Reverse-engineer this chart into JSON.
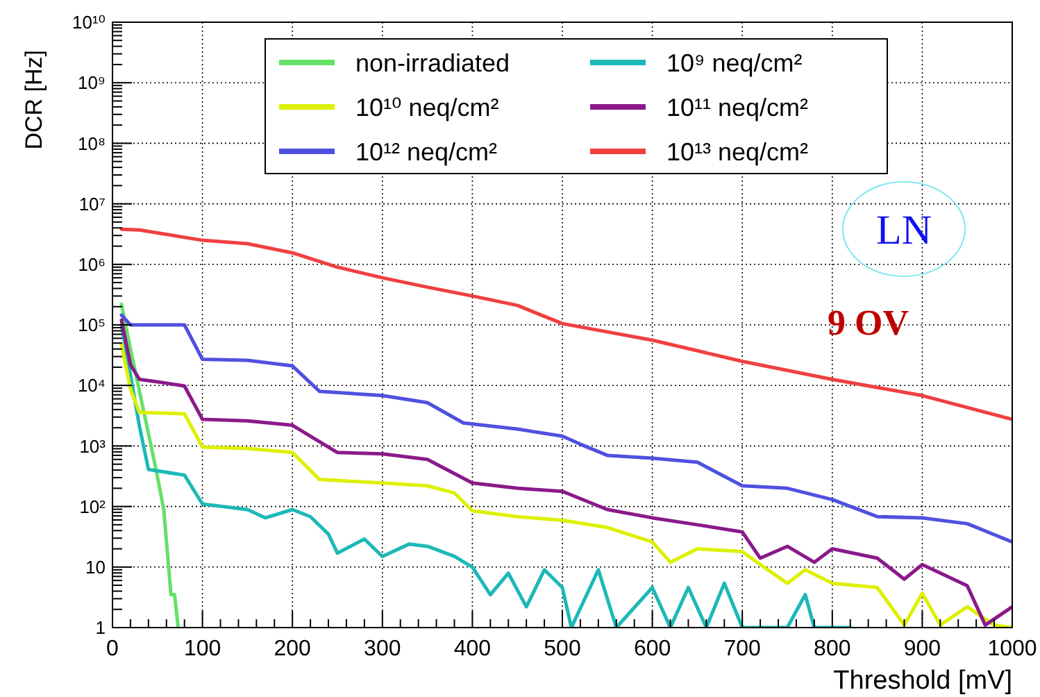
{
  "chart_data": {
    "type": "line",
    "xlabel": "Threshold [mV]",
    "ylabel": "DCR [Hz]",
    "log": "y",
    "grid": true,
    "legend": "top",
    "line_style": "solid",
    "xlim": [
      0,
      1000
    ],
    "xticks": [
      0,
      100,
      200,
      300,
      400,
      500,
      600,
      700,
      800,
      900,
      1000
    ],
    "ylim": [
      1,
      10000000000
    ],
    "yticks": [
      1,
      10,
      {
        "value": 100,
        "label": "10²"
      },
      {
        "value": 1000,
        "label": "10³"
      },
      {
        "value": 10000,
        "label": "10⁴"
      },
      {
        "value": 100000,
        "label": "10⁵"
      },
      {
        "value": 1000000,
        "label": "10⁶"
      },
      {
        "value": 10000000,
        "label": "10⁷"
      },
      {
        "value": 100000000,
        "label": "10⁸"
      },
      {
        "value": 1000000000,
        "label": "10⁹"
      },
      {
        "value": 10000000000,
        "label": "10¹⁰"
      }
    ],
    "annotations": [
      "LN",
      "9 OV"
    ],
    "series": [
      {
        "name": "non-irradiated",
        "color": "#66e066",
        "x": [
          10,
          20,
          30,
          40,
          49,
          57,
          65,
          69,
          73
        ],
        "values": [
          220000,
          40000,
          8000,
          1600,
          370,
          89,
          3.5,
          3.5,
          1
        ]
      },
      {
        "name": "10⁹ neq/cm²",
        "color": "#1cb8b8",
        "x": [
          10,
          20,
          30,
          40,
          80,
          100,
          150,
          170,
          200,
          220,
          240,
          250,
          280,
          300,
          330,
          350,
          380,
          400,
          420,
          440,
          460,
          480,
          500,
          510,
          540,
          560,
          600,
          620,
          640,
          660,
          680,
          700,
          750,
          770,
          780,
          820
        ],
        "values": [
          100000,
          15000,
          2100,
          410,
          330,
          110,
          89,
          65,
          89,
          68,
          35,
          17,
          29,
          15,
          24,
          22,
          15,
          10,
          3.5,
          7.9,
          2.2,
          9,
          4.6,
          1,
          9,
          1,
          4.6,
          1,
          4.6,
          1,
          5.4,
          1,
          1,
          3.5,
          1,
          1
        ]
      },
      {
        "name": "10¹⁰ neq/cm²",
        "color": "#ddf000",
        "x": [
          10,
          20,
          30,
          80,
          100,
          150,
          200,
          230,
          300,
          350,
          380,
          400,
          450,
          500,
          550,
          600,
          620,
          650,
          700,
          720,
          750,
          770,
          800,
          850,
          880,
          900,
          920,
          950,
          980,
          1000
        ],
        "values": [
          48000,
          8700,
          3600,
          3400,
          960,
          910,
          780,
          280,
          245,
          220,
          167,
          85,
          68,
          59,
          45,
          26,
          12,
          20,
          18,
          11,
          5.4,
          9,
          5.4,
          4.6,
          1.1,
          3.7,
          1.1,
          2.2,
          1.1,
          1
        ]
      },
      {
        "name": "10¹¹ neq/cm²",
        "color": "#8a1a8a",
        "x": [
          10,
          20,
          30,
          50,
          80,
          100,
          150,
          200,
          250,
          300,
          350,
          400,
          450,
          500,
          550,
          600,
          650,
          700,
          720,
          750,
          780,
          800,
          850,
          880,
          900,
          950,
          970,
          1000
        ],
        "values": [
          120000,
          22000,
          12600,
          11500,
          9800,
          2750,
          2600,
          2200,
          780,
          740,
          600,
          245,
          200,
          178,
          89,
          65,
          50,
          38,
          14,
          22,
          12,
          20,
          14,
          6.3,
          11,
          4.9,
          1.1,
          2.2
        ]
      },
      {
        "name": "10¹² neq/cm²",
        "color": "#5050e0",
        "x": [
          10,
          20,
          80,
          100,
          150,
          200,
          230,
          300,
          350,
          390,
          450,
          500,
          520,
          550,
          600,
          650,
          700,
          750,
          800,
          850,
          900,
          950,
          1000
        ],
        "values": [
          145000,
          100000,
          100000,
          27000,
          26000,
          21000,
          8000,
          6800,
          5200,
          2400,
          1900,
          1450,
          1070,
          700,
          630,
          540,
          220,
          200,
          130,
          68,
          65,
          52,
          26
        ]
      },
      {
        "name": "10¹³ neq/cm²",
        "color": "#f04040",
        "x": [
          10,
          30,
          100,
          150,
          200,
          250,
          300,
          350,
          400,
          450,
          500,
          600,
          700,
          800,
          900,
          1000
        ],
        "values": [
          3800000,
          3700000,
          2500000,
          2200000,
          1550000,
          900000,
          600000,
          420000,
          300000,
          210000,
          105000,
          56000,
          25000,
          12600,
          6800,
          2750
        ]
      }
    ]
  }
}
